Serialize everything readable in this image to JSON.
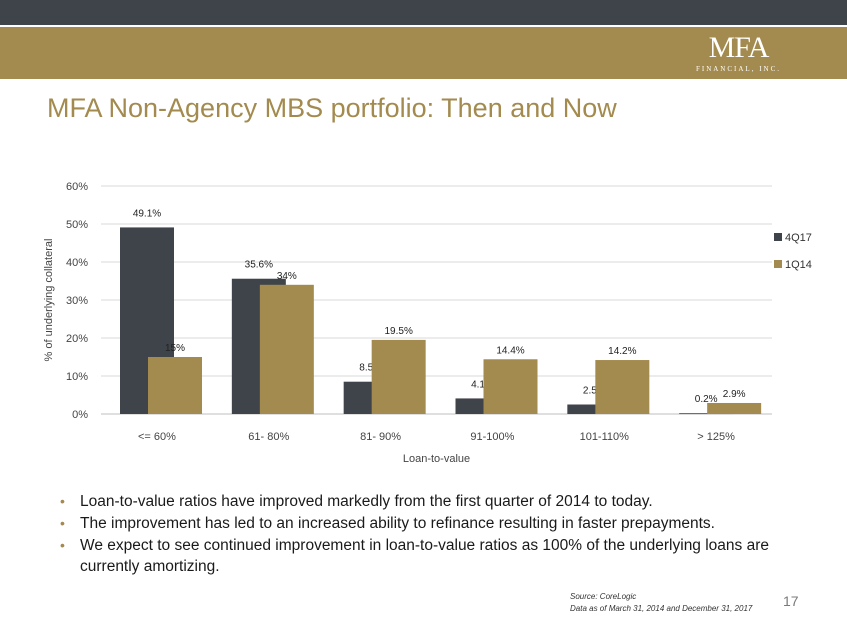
{
  "header": {
    "logo_main": "MFA",
    "logo_sub": "FINANCIAL, INC."
  },
  "slide": {
    "title": "MFA Non-Agency MBS portfolio: Then and Now",
    "page_number": "17"
  },
  "colors": {
    "series_4Q17": "#3f434a",
    "series_1Q14": "#a38a4e",
    "brand_gold": "#a38a4e"
  },
  "chart_data": {
    "type": "bar",
    "categories": [
      "<= 60%",
      "61- 80%",
      "81- 90%",
      "91-100%",
      "101-110%",
      "> 125%"
    ],
    "series": [
      {
        "name": "4Q17",
        "values": [
          49.1,
          35.6,
          8.5,
          4.1,
          2.5,
          0.2
        ],
        "labels": [
          "49.1%",
          "35.6%",
          "8.5%",
          "4.1%",
          "2.5%",
          "0.2%"
        ]
      },
      {
        "name": "1Q14",
        "values": [
          15,
          34,
          19.5,
          14.4,
          14.2,
          2.9
        ],
        "labels": [
          "15%",
          "34%",
          "19.5%",
          "14.4%",
          "14.2%",
          "2.9%"
        ]
      }
    ],
    "xlabel": "Loan-to-value",
    "ylabel": "% of underlying collateral",
    "ylim": [
      0,
      60
    ],
    "yticks": [
      "0%",
      "10%",
      "20%",
      "30%",
      "40%",
      "50%",
      "60%"
    ],
    "grid": true,
    "legend": "right"
  },
  "bullets": [
    "Loan-to-value ratios have improved markedly from the first quarter of 2014 to today.",
    "The improvement has led to an increased ability to refinance resulting in faster prepayments.",
    "We expect to see continued improvement in loan-to-value ratios as 100% of the underlying loans are currently amortizing."
  ],
  "footer": {
    "source": "Source: CoreLogic",
    "data_note": "Data as of March 31, 2014 and December 31, 2017"
  }
}
